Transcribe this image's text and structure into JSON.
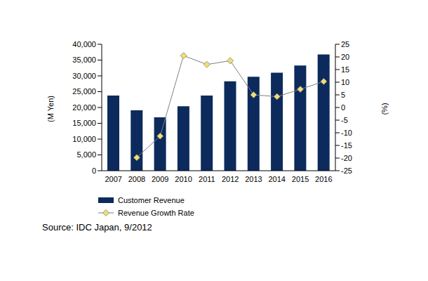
{
  "chart_data": {
    "type": "bar",
    "categories": [
      "2007",
      "2008",
      "2009",
      "2010",
      "2011",
      "2012",
      "2013",
      "2014",
      "2015",
      "2016"
    ],
    "series": [
      {
        "name": "Customer Revenue",
        "type": "bar",
        "color": "#0d2a5c",
        "axis": "y",
        "values": [
          23800,
          19100,
          16900,
          20400,
          23800,
          28300,
          29700,
          31000,
          33300,
          36800
        ]
      },
      {
        "name": "Revenue Growth Rate",
        "type": "line",
        "color": "#808080",
        "marker": "diamond",
        "axis": "y2",
        "values": [
          null,
          -19.8,
          -11.3,
          20.5,
          17.0,
          18.5,
          5.0,
          4.3,
          7.2,
          10.3
        ]
      }
    ],
    "y_label": "(M Yen)",
    "y2_label": "(%)",
    "ylim": [
      0,
      40000
    ],
    "yticks": [
      0,
      {
        "value": 5000,
        "label": "5,000"
      },
      {
        "value": 10000,
        "label": "10,000"
      },
      {
        "value": 15000,
        "label": "15,000"
      },
      {
        "value": 20000,
        "label": "20,000"
      },
      {
        "value": 25000,
        "label": "25,000"
      },
      {
        "value": 30000,
        "label": "30,000"
      },
      {
        "value": 35000,
        "label": "35,000"
      },
      {
        "value": 40000,
        "label": "40,000"
      }
    ],
    "y2lim": [
      -25,
      25
    ],
    "y2ticks": [
      -25,
      -20,
      -15,
      -10,
      -5,
      0,
      5,
      10,
      15,
      20,
      25
    ],
    "grid": false,
    "legend": "bottom",
    "annotations": [
      "Source: IDC Japan, 9/2012"
    ]
  }
}
